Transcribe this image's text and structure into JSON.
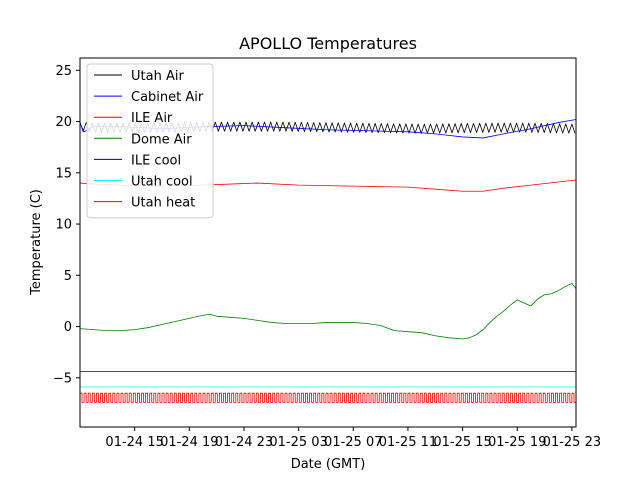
{
  "chart_data": {
    "type": "line",
    "title": "APOLLO Temperatures",
    "xlabel": "Date (GMT)",
    "ylabel": "Temperature (C)",
    "x_unit": "hours since 01-24 11:00 GMT",
    "xlim": [
      0,
      36.3
    ],
    "ylim": [
      -9.8,
      26.2
    ],
    "x_ticks": [
      {
        "x": 4,
        "label": "01-24 15"
      },
      {
        "x": 8,
        "label": "01-24 19"
      },
      {
        "x": 12,
        "label": "01-24 23"
      },
      {
        "x": 16,
        "label": "01-25 03"
      },
      {
        "x": 20,
        "label": "01-25 07"
      },
      {
        "x": 24,
        "label": "01-25 11"
      },
      {
        "x": 28,
        "label": "01-25 15"
      },
      {
        "x": 32,
        "label": "01-25 19"
      },
      {
        "x": 36,
        "label": "01-25 23"
      }
    ],
    "y_ticks": [
      {
        "y": -5,
        "label": "−5"
      },
      {
        "y": 0,
        "label": "0"
      },
      {
        "y": 5,
        "label": "5"
      },
      {
        "y": 10,
        "label": "10"
      },
      {
        "y": 15,
        "label": "15"
      },
      {
        "y": 20,
        "label": "20"
      },
      {
        "y": 25,
        "label": "25"
      }
    ],
    "legend_position": "top-left",
    "series": [
      {
        "name": "Utah Air",
        "color": "#000000",
        "style": "oscillating",
        "center": 19.4,
        "amplitude": 0.45,
        "period": 0.45,
        "x": [
          0,
          1,
          5,
          10,
          15,
          20,
          25,
          30,
          33,
          36.3
        ],
        "y": [
          19.5,
          19.4,
          19.4,
          19.5,
          19.5,
          19.4,
          19.3,
          19.4,
          19.4,
          19.3
        ]
      },
      {
        "name": "Cabinet Air",
        "color": "#0000ff",
        "style": "line",
        "x": [
          0,
          0.3,
          1,
          3,
          6,
          9,
          12,
          15,
          18,
          21,
          24,
          26,
          28,
          29.5,
          31,
          33,
          35,
          36.3
        ],
        "y": [
          19.8,
          19.0,
          19.5,
          19.5,
          19.3,
          19.5,
          19.6,
          19.4,
          19.2,
          19.1,
          19.0,
          18.8,
          18.5,
          18.4,
          18.8,
          19.3,
          19.9,
          20.2
        ]
      },
      {
        "name": "ILE Air",
        "color": "#ff0000",
        "style": "line",
        "x": [
          0,
          1,
          3,
          6,
          9,
          11,
          13,
          16,
          20,
          24,
          26,
          28,
          29.5,
          31,
          33,
          35,
          36.3
        ],
        "y": [
          14.0,
          13.9,
          13.8,
          13.7,
          13.8,
          13.9,
          14.0,
          13.8,
          13.7,
          13.6,
          13.4,
          13.2,
          13.2,
          13.5,
          13.8,
          14.1,
          14.3
        ]
      },
      {
        "name": "Dome Air",
        "color": "#008000",
        "style": "line",
        "x": [
          0,
          1,
          2,
          3,
          4,
          5,
          6,
          7,
          8,
          9,
          9.5,
          10,
          11,
          12,
          13,
          14,
          15,
          16,
          17,
          18,
          19,
          20,
          21,
          22,
          23,
          24,
          25,
          26,
          27,
          28,
          28.5,
          29,
          29.5,
          30,
          30.5,
          31,
          31.5,
          32,
          32.5,
          33,
          33.5,
          34,
          34.5,
          35,
          35.5,
          36,
          36.3
        ],
        "y": [
          -0.2,
          -0.3,
          -0.4,
          -0.4,
          -0.3,
          -0.1,
          0.2,
          0.5,
          0.8,
          1.1,
          1.2,
          1.0,
          0.9,
          0.8,
          0.6,
          0.4,
          0.3,
          0.3,
          0.3,
          0.4,
          0.4,
          0.4,
          0.3,
          0.1,
          -0.4,
          -0.5,
          -0.6,
          -0.9,
          -1.1,
          -1.2,
          -1.1,
          -0.8,
          -0.3,
          0.4,
          1.0,
          1.5,
          2.1,
          2.6,
          2.3,
          2.0,
          2.7,
          3.1,
          3.2,
          3.5,
          3.9,
          4.2,
          3.7
        ]
      },
      {
        "name": "ILE cool",
        "color": "#000080",
        "style": "line",
        "x": [
          0,
          36.3
        ],
        "y": [
          -4.4,
          -4.4
        ]
      },
      {
        "name": "Utah cool",
        "color": "#00ffff",
        "style": "line",
        "x": [
          0,
          36.3
        ],
        "y": [
          -5.9,
          -5.9
        ]
      },
      {
        "name": "Utah heat",
        "color": "#ff0000",
        "style": "toggle",
        "low": -7.4,
        "high": -6.5,
        "period": 0.3,
        "x": [
          0,
          36.3
        ],
        "y": [
          -6.5,
          -7.4
        ]
      }
    ]
  }
}
